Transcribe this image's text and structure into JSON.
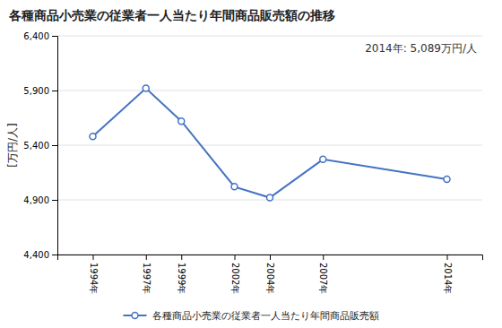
{
  "chart_data": {
    "type": "line",
    "title": "各種商品小売業の従業者一人当たり年間商品販売額の推移",
    "ylabel": "[万円/人]",
    "annotation": "2014年: 5,089万円/人",
    "x": [
      1994,
      1997,
      1999,
      2002,
      2004,
      2007,
      2014
    ],
    "xlim": [
      1992,
      2016
    ],
    "xticks": [
      {
        "value": 1994,
        "label": "1994年"
      },
      {
        "value": 1997,
        "label": "1997年"
      },
      {
        "value": 1999,
        "label": "1999年"
      },
      {
        "value": 2002,
        "label": "2002年"
      },
      {
        "value": 2004,
        "label": "2004年"
      },
      {
        "value": 2007,
        "label": "2007年"
      },
      {
        "value": 2014,
        "label": "2014年"
      }
    ],
    "series": [
      {
        "name": "各種商品小売業の従業者一人当たり年間商品販売額",
        "color": "#4472C4",
        "marker": "circle",
        "values": [
          5480,
          5920,
          5620,
          5020,
          4920,
          5270,
          5089
        ]
      }
    ],
    "ylim": [
      4400,
      6400
    ],
    "yticks": [
      {
        "value": 4400,
        "label": "4,400"
      },
      {
        "value": 4900,
        "label": "4,900"
      },
      {
        "value": 5400,
        "label": "5,400"
      },
      {
        "value": 5900,
        "label": "5,900"
      },
      {
        "value": 6400,
        "label": "6,400"
      }
    ],
    "grid": true,
    "legend": "bottom"
  }
}
